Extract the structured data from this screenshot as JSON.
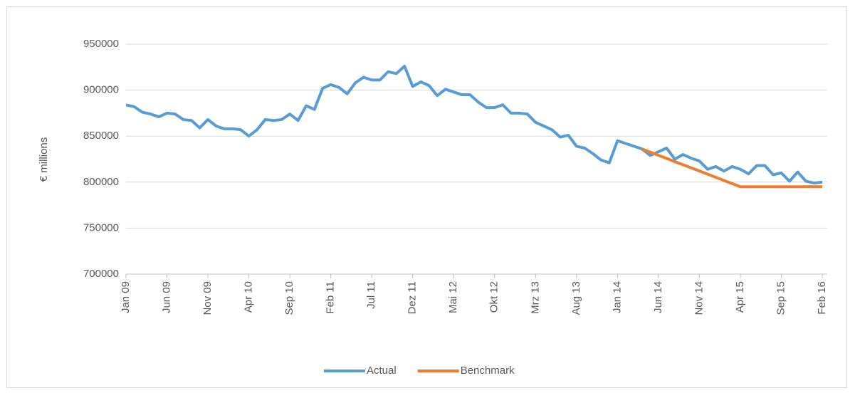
{
  "chart_data": {
    "type": "line",
    "ylabel": "€ millions",
    "categories": [
      "Jan 09",
      null,
      null,
      null,
      null,
      "Jun 09",
      null,
      null,
      null,
      null,
      "Nov 09",
      null,
      null,
      null,
      null,
      "Apr 10",
      null,
      null,
      null,
      null,
      "Sep 10",
      null,
      null,
      null,
      null,
      "Feb 11",
      null,
      null,
      null,
      null,
      "Jul 11",
      null,
      null,
      null,
      null,
      "Dez 11",
      null,
      null,
      null,
      null,
      "Mai 12",
      null,
      null,
      null,
      null,
      "Okt 12",
      null,
      null,
      null,
      null,
      "Mrz 13",
      null,
      null,
      null,
      null,
      "Aug 13",
      null,
      null,
      null,
      null,
      "Jan 14",
      null,
      null,
      null,
      null,
      "Jun 14",
      null,
      null,
      null,
      null,
      "Nov 14",
      null,
      null,
      null,
      null,
      "Apr 15",
      null,
      null,
      null,
      null,
      "Sep 15",
      null,
      null,
      null,
      null,
      "Feb 16"
    ],
    "series": [
      {
        "name": "Actual",
        "color": "#5b9bd5",
        "values": [
          884000,
          882000,
          876000,
          874000,
          871000,
          875000,
          874000,
          868000,
          867000,
          859000,
          868000,
          861000,
          858000,
          858000,
          857000,
          850000,
          857000,
          868000,
          867000,
          868000,
          874000,
          867000,
          883000,
          879000,
          902000,
          906000,
          903000,
          896000,
          908000,
          914000,
          911000,
          911000,
          920000,
          918000,
          926000,
          904000,
          909000,
          905000,
          894000,
          901000,
          898000,
          895000,
          895000,
          887000,
          881000,
          881000,
          884000,
          875000,
          875000,
          874000,
          865000,
          861000,
          857000,
          849000,
          851000,
          839000,
          837000,
          831000,
          824000,
          821000,
          845000,
          842000,
          839000,
          836000,
          829000,
          833000,
          837000,
          825000,
          830000,
          826000,
          823000,
          814000,
          817000,
          812000,
          817000,
          814000,
          809000,
          818000,
          818000,
          808000,
          810000,
          801000,
          811000,
          801000,
          799000,
          800000
        ]
      },
      {
        "name": "Benchmark",
        "color": "#ed7d31",
        "values": [
          null,
          null,
          null,
          null,
          null,
          null,
          null,
          null,
          null,
          null,
          null,
          null,
          null,
          null,
          null,
          null,
          null,
          null,
          null,
          null,
          null,
          null,
          null,
          null,
          null,
          null,
          null,
          null,
          null,
          null,
          null,
          null,
          null,
          null,
          null,
          null,
          null,
          null,
          null,
          null,
          null,
          null,
          null,
          null,
          null,
          null,
          null,
          null,
          null,
          null,
          null,
          null,
          null,
          null,
          null,
          null,
          null,
          null,
          null,
          null,
          null,
          null,
          null,
          836000,
          832600,
          829200,
          825800,
          822300,
          818900,
          815500,
          812100,
          808700,
          805300,
          801800,
          798400,
          795000,
          795000,
          795000,
          795000,
          795000,
          795000,
          795000,
          795000,
          795000,
          795000,
          795000
        ]
      }
    ],
    "ylim": [
      700000,
      950000
    ],
    "yticks": [
      700000,
      750000,
      800000,
      850000,
      900000,
      950000
    ],
    "grid": true,
    "legend": "bottom"
  }
}
